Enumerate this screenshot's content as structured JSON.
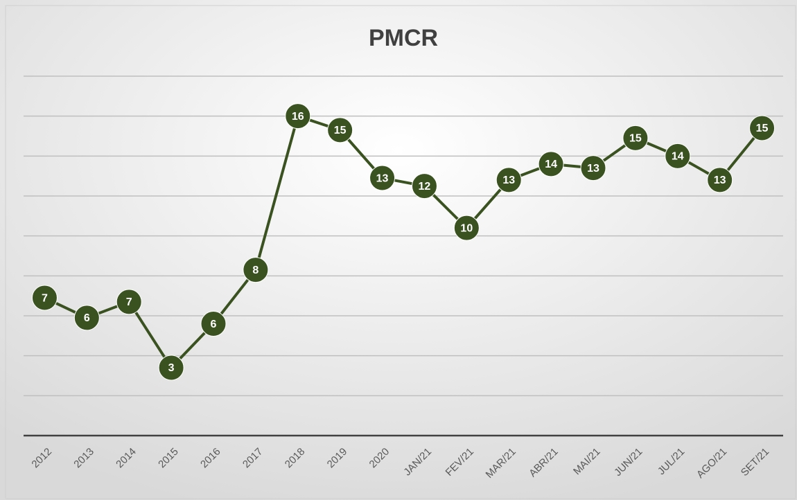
{
  "chart_data": {
    "type": "line",
    "title": "PMCR",
    "categories": [
      "2012",
      "2013",
      "2014",
      "2015",
      "2016",
      "2017",
      "2018",
      "2019",
      "2020",
      "JAN/21",
      "FEV/21",
      "MAR/21",
      "ABR/21",
      "MAI/21",
      "JUN/21",
      "JUL/21",
      "AGO/21",
      "SET/21"
    ],
    "series": [
      {
        "name": "PMCR",
        "color": "#3a5220",
        "values": [
          6.9,
          5.9,
          6.7,
          3.4,
          5.6,
          8.3,
          16.0,
          15.3,
          12.9,
          12.5,
          10.4,
          12.8,
          13.6,
          13.4,
          14.9,
          14.0,
          12.8,
          15.4
        ],
        "value_labels": [
          "7",
          "6",
          "7",
          "3",
          "6",
          "8",
          "16",
          "15",
          "13",
          "12",
          "10",
          "13",
          "14",
          "13",
          "15",
          "14",
          "13",
          "15"
        ]
      }
    ],
    "ylim": [
      0,
      18
    ],
    "yticks": [
      0,
      2,
      4,
      6,
      8,
      10,
      12,
      14,
      16,
      18
    ],
    "grid": true
  }
}
